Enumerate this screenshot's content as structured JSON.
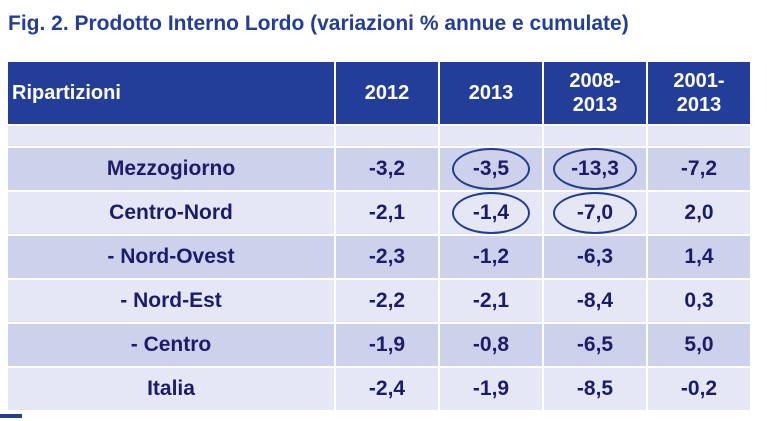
{
  "chart_data": {
    "type": "table",
    "title": "Fig. 2. Prodotto Interno Lordo (variazioni % annue e cumulate)",
    "columns": [
      "Ripartizioni",
      "2012",
      "2013",
      "2008-\n2013",
      "2001-\n2013"
    ],
    "rows": [
      {
        "name": "Mezzogiorno",
        "values": [
          "-3,2",
          "-3,5",
          "-13,3",
          "-7,2"
        ],
        "circled": [
          false,
          true,
          true,
          false
        ]
      },
      {
        "name": "Centro-Nord",
        "values": [
          "-2,1",
          "-1,4",
          "-7,0",
          "2,0"
        ],
        "circled": [
          false,
          true,
          true,
          false
        ]
      },
      {
        "name": "- Nord-Ovest",
        "values": [
          "-2,3",
          "-1,2",
          "-6,3",
          "1,4"
        ],
        "circled": [
          false,
          false,
          false,
          false
        ]
      },
      {
        "name": "- Nord-Est",
        "values": [
          "-2,2",
          "-2,1",
          "-8,4",
          "0,3"
        ],
        "circled": [
          false,
          false,
          false,
          false
        ]
      },
      {
        "name": "- Centro",
        "values": [
          "-1,9",
          "-0,8",
          "-6,5",
          "5,0"
        ],
        "circled": [
          false,
          false,
          false,
          false
        ]
      },
      {
        "name": "Italia",
        "values": [
          "-2,4",
          "-1,9",
          "-8,5",
          "-0,2"
        ],
        "circled": [
          false,
          false,
          false,
          false
        ]
      }
    ]
  },
  "colors": {
    "header": "#233e99",
    "band_dark": "#cdd1ec",
    "band_light": "#e5e7f5",
    "text": "#1c1c6a",
    "ring": "#243c8c"
  }
}
